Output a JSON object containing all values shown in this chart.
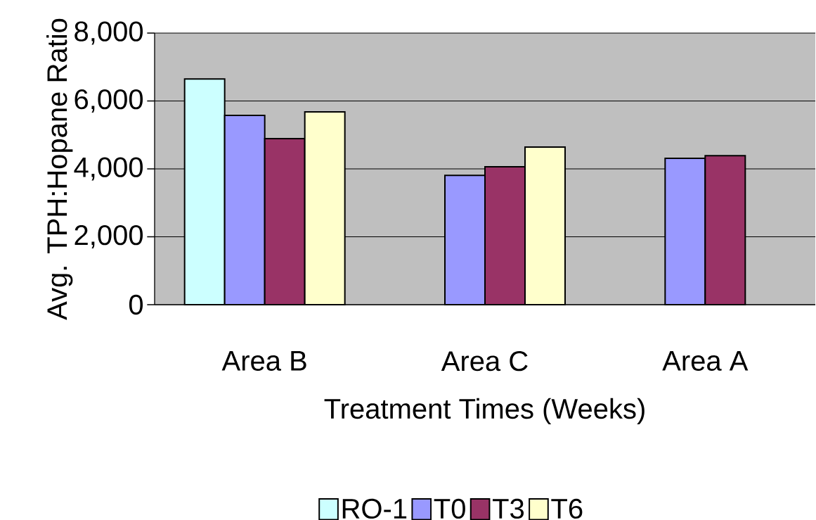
{
  "chart_data": {
    "type": "bar",
    "xlabel": "Treatment Times (Weeks)",
    "ylabel": "Avg. TPH:Hopane Ratio",
    "categories": [
      "Area B",
      "Area C",
      "Area A"
    ],
    "series": [
      {
        "name": "RO-1",
        "color": "#ccffff",
        "values": [
          6650,
          null,
          null
        ]
      },
      {
        "name": "T0",
        "color": "#9999ff",
        "values": [
          5575,
          3810,
          4310
        ]
      },
      {
        "name": "T3",
        "color": "#993366",
        "values": [
          4890,
          4060,
          4390
        ]
      },
      {
        "name": "T6",
        "color": "#ffffcc",
        "values": [
          5680,
          4640,
          null
        ]
      }
    ],
    "ylim": [
      0,
      8000
    ],
    "yticks": [
      0,
      {
        "value": 2000,
        "label": "2,000"
      },
      {
        "value": 4000,
        "label": "4,000"
      },
      {
        "value": 6000,
        "label": "6,000"
      },
      {
        "value": 8000,
        "label": "8,000"
      }
    ],
    "grid": "y",
    "legend": "bottom"
  }
}
